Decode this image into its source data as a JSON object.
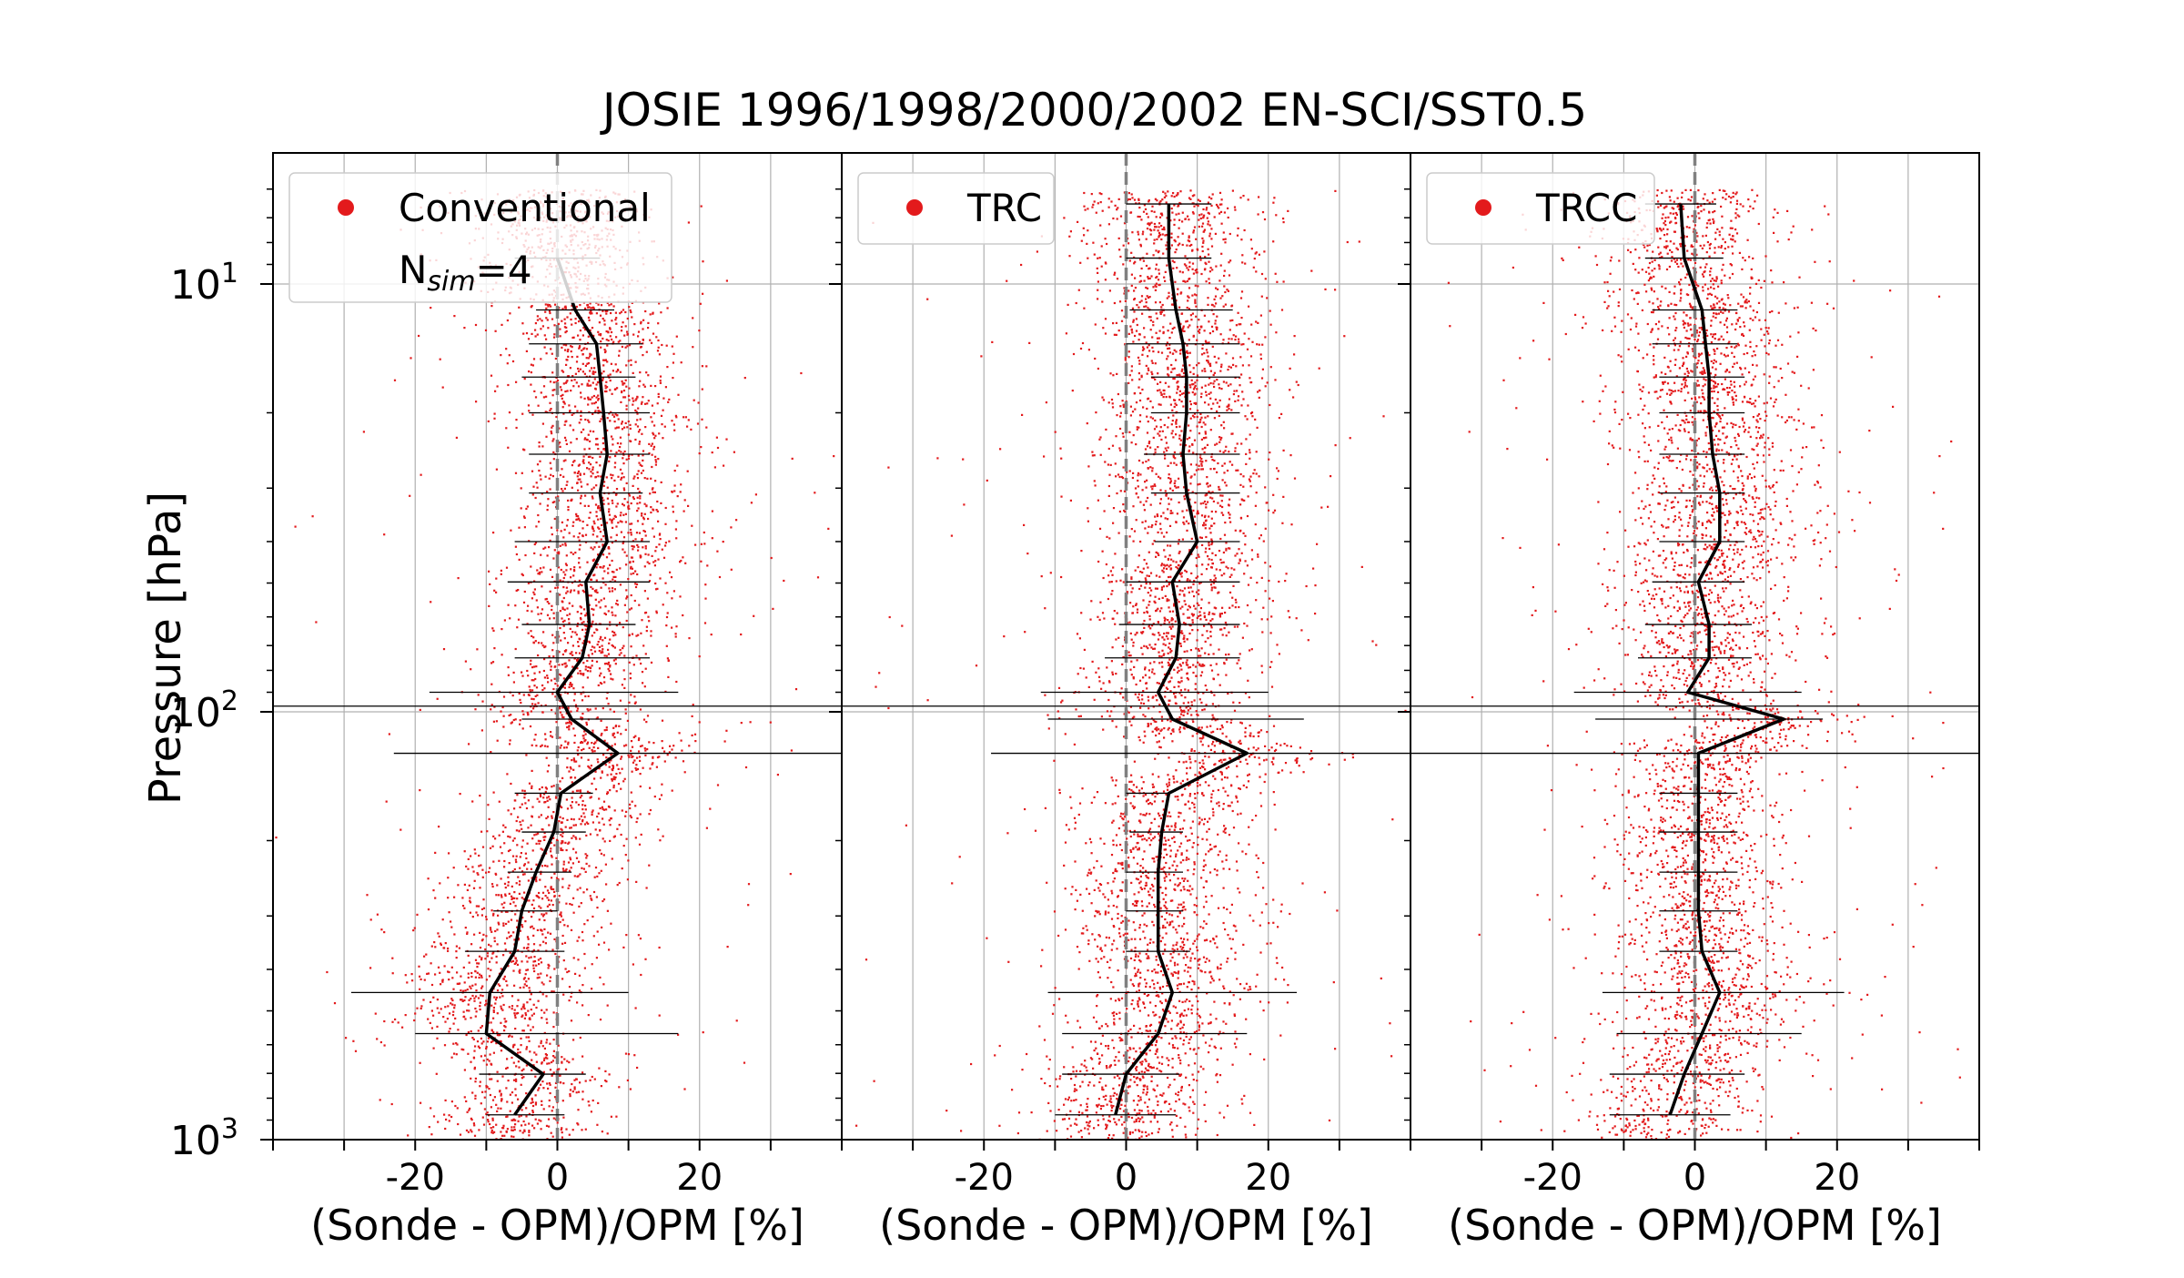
{
  "figure": {
    "title": "JOSIE 1996/1998/2000/2002 EN-SCI/SST0.5"
  },
  "chart_data": {
    "type": "scatter",
    "title": "JOSIE 1996/1998/2000/2002 EN-SCI/SST0.5",
    "ylabel": "Pressure [hPa]",
    "ylim": [
      1000,
      6
    ],
    "yscale": "log",
    "ytick_labels": [
      "10^1",
      "10^2",
      "10^3"
    ],
    "ytick_values": [
      10,
      100,
      1000
    ],
    "xlim": [
      -40,
      40
    ],
    "xtick_values": [
      -20,
      0,
      20
    ],
    "xtick_labels": [
      "-20",
      "0",
      "20"
    ],
    "grid": true,
    "hline_pressure": 97,
    "colors": {
      "scatter": "#e31a1c",
      "profile": "#000000",
      "zero_line": "#808080",
      "grid": "#b0b0b0"
    },
    "panels": [
      {
        "name": "Conventional",
        "xlabel": "(Sonde - OPM)/OPM [%]",
        "legend": [
          {
            "label": "Conventional",
            "marker": "dot",
            "color": "#e31a1c"
          },
          {
            "label_main": "N",
            "label_sub": "sim",
            "label_rest": "=4",
            "marker": "none"
          }
        ],
        "legend_position": "top-left",
        "profile": {
          "pressure": [
            8.7,
            11.5,
            13.8,
            16.5,
            20.0,
            25.0,
            30.8,
            40.0,
            49.7,
            62.5,
            74.8,
            90.0,
            104.0,
            125.0,
            155.0,
            191.0,
            237.0,
            292.0,
            363.0,
            453.0,
            565.0,
            703.0,
            875.0
          ],
          "value": [
            0.0,
            2.5,
            5.5,
            6.0,
            6.5,
            7.0,
            6.0,
            7.0,
            4.0,
            4.5,
            3.5,
            0.0,
            2.0,
            8.5,
            0.5,
            -0.5,
            -3.0,
            -5.0,
            -6.0,
            -9.5,
            -10.0,
            -2.0,
            -6.0
          ],
          "err_low": [
            -6.0,
            -3.0,
            -4.0,
            -5.0,
            -4.0,
            -4.0,
            -4.0,
            -6.0,
            -7.0,
            -5.0,
            -6.0,
            -18.0,
            -5.0,
            -23.0,
            -6.0,
            -5.0,
            -7.0,
            -9.0,
            -13.0,
            -29.0,
            -20.0,
            -11.0,
            -10.0
          ],
          "err_high": [
            6.0,
            8.0,
            12.0,
            11.0,
            13.0,
            13.0,
            12.0,
            13.0,
            13.0,
            11.0,
            13.0,
            17.0,
            9.0,
            41.0,
            5.0,
            4.0,
            2.0,
            0.0,
            1.0,
            10.0,
            17.0,
            4.0,
            1.0
          ]
        },
        "spread_scale": 1.0
      },
      {
        "name": "TRC",
        "xlabel": "(Sonde - OPM)/OPM [%]",
        "legend": [
          {
            "label": "TRC",
            "marker": "dot",
            "color": "#e31a1c"
          }
        ],
        "legend_position": "top-left",
        "profile": {
          "pressure": [
            6.5,
            8.7,
            11.5,
            13.8,
            16.5,
            20.0,
            25.0,
            30.8,
            40.0,
            49.7,
            62.5,
            74.8,
            90.0,
            104.0,
            125.0,
            155.0,
            191.0,
            237.0,
            292.0,
            363.0,
            453.0,
            565.0,
            703.0,
            875.0
          ],
          "value": [
            6.0,
            6.0,
            7.0,
            8.0,
            8.5,
            8.5,
            8.0,
            8.5,
            10.0,
            6.5,
            7.5,
            7.0,
            4.5,
            6.5,
            17.0,
            6.0,
            5.0,
            4.5,
            4.5,
            4.5,
            6.5,
            4.5,
            0.0,
            -1.5
          ],
          "err_low": [
            0.0,
            0.0,
            0.5,
            0.0,
            3.5,
            3.5,
            2.5,
            3.5,
            4.0,
            0.0,
            -1.0,
            -3.0,
            -12.0,
            -11.0,
            -19.0,
            0.0,
            0.5,
            0.0,
            0.0,
            0.0,
            -11.0,
            -9.0,
            -9.0,
            -10.0
          ],
          "err_high": [
            12.0,
            12.0,
            15.0,
            16.0,
            16.0,
            16.0,
            16.0,
            16.0,
            16.0,
            16.0,
            16.0,
            16.0,
            20.0,
            25.0,
            55.0,
            6.0,
            8.0,
            8.0,
            8.0,
            9.0,
            24.0,
            17.0,
            7.5,
            7.0
          ]
        },
        "spread_scale": 1.0
      },
      {
        "name": "TRCC",
        "xlabel": "(Sonde - OPM)/OPM [%]",
        "legend": [
          {
            "label": "TRCC",
            "marker": "dot",
            "color": "#e31a1c"
          }
        ],
        "legend_position": "top-left",
        "profile": {
          "pressure": [
            6.5,
            8.7,
            11.5,
            13.8,
            16.5,
            20.0,
            25.0,
            30.8,
            40.0,
            49.7,
            62.5,
            74.8,
            90.0,
            104.0,
            125.0,
            155.0,
            191.0,
            237.0,
            292.0,
            363.0,
            453.0,
            565.0,
            703.0,
            875.0
          ],
          "value": [
            -2.0,
            -1.5,
            1.0,
            1.5,
            2.0,
            2.0,
            2.5,
            3.5,
            3.5,
            0.5,
            2.0,
            2.0,
            -1.0,
            12.5,
            0.5,
            0.5,
            0.5,
            0.5,
            0.5,
            1.0,
            3.5,
            1.0,
            -1.5,
            -3.5
          ],
          "err_low": [
            -7.0,
            -7.0,
            -6.0,
            -6.0,
            -5.0,
            -5.0,
            -5.0,
            -5.0,
            -5.0,
            -6.0,
            -7.0,
            -8.0,
            -17.0,
            -14.0,
            -40.0,
            -5.0,
            -5.0,
            -5.0,
            -5.0,
            -5.0,
            -13.0,
            -11.0,
            -12.0,
            -12.0
          ],
          "err_high": [
            3.0,
            4.0,
            6.0,
            6.0,
            7.0,
            7.0,
            7.0,
            7.0,
            7.0,
            7.0,
            8.0,
            8.0,
            15.0,
            18.0,
            41.0,
            6.0,
            6.0,
            6.0,
            6.0,
            6.0,
            21.0,
            15.0,
            7.0,
            5.0
          ]
        },
        "spread_scale": 1.0
      }
    ]
  }
}
